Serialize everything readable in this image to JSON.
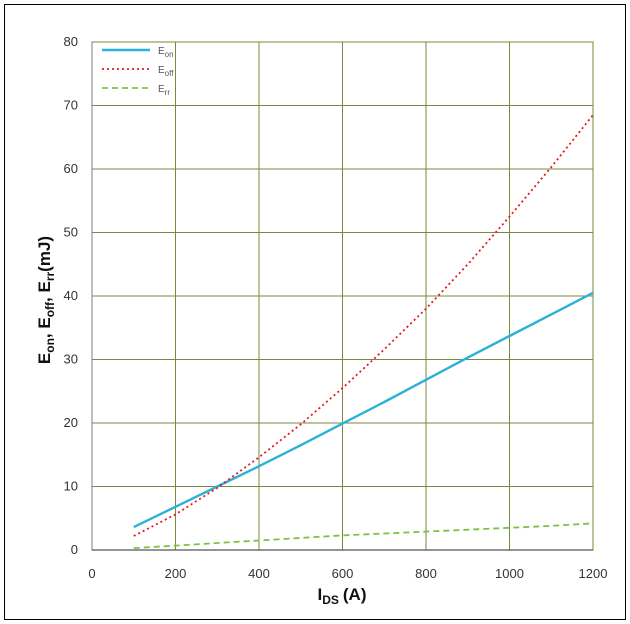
{
  "chart_data": {
    "type": "line",
    "x_label_main": "I",
    "x_label_sub": "DS",
    "x_label_unit": "(A)",
    "y_label_parts": [
      {
        "main": "E",
        "sub": "on"
      },
      {
        "main": ", E",
        "sub": "off"
      },
      {
        "main": ", E",
        "sub": "rr"
      }
    ],
    "y_label_unit": "(mJ)",
    "xlim": [
      0,
      1200
    ],
    "ylim": [
      0,
      80
    ],
    "x_ticks": [
      0,
      200,
      400,
      600,
      800,
      1000,
      1200
    ],
    "y_ticks": [
      0,
      10,
      20,
      30,
      40,
      50,
      60,
      70,
      80
    ],
    "grid": true,
    "legend_position": "top-left",
    "series": [
      {
        "name": "on",
        "name_main": "E",
        "color": "#2cb1d8",
        "style": "solid",
        "x": [
          100,
          200,
          300,
          400,
          500,
          600,
          700,
          800,
          900,
          1000,
          1100,
          1200
        ],
        "y": [
          3.6,
          6.8,
          10.0,
          13.2,
          16.5,
          19.9,
          23.3,
          26.8,
          30.3,
          33.7,
          37.1,
          40.5
        ]
      },
      {
        "name": "off",
        "name_main": "E",
        "color": "#e41a1c",
        "style": "dotted",
        "x": [
          100,
          200,
          300,
          400,
          500,
          600,
          700,
          800,
          900,
          1000,
          1100,
          1200
        ],
        "y": [
          2.2,
          5.6,
          9.8,
          14.6,
          19.8,
          25.5,
          31.6,
          38.0,
          45.0,
          52.5,
          60.3,
          68.5
        ]
      },
      {
        "name": "rr",
        "name_main": "E",
        "color": "#7cc242",
        "style": "dashed",
        "x": [
          100,
          200,
          300,
          400,
          500,
          600,
          700,
          800,
          900,
          1000,
          1100,
          1200
        ],
        "y": [
          0.3,
          0.7,
          1.1,
          1.5,
          1.9,
          2.3,
          2.6,
          2.9,
          3.2,
          3.5,
          3.8,
          4.2
        ]
      }
    ]
  }
}
